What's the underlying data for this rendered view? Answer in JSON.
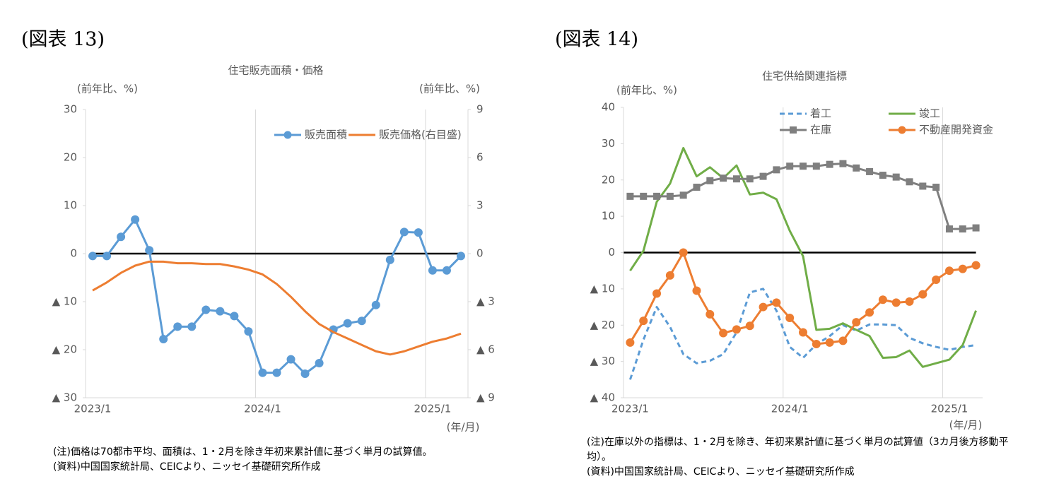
{
  "chart_data": [
    {
      "type": "line",
      "figure_label": "(図表 13)",
      "title": "住宅販売面積・価格",
      "y_label": "(前年比、%)",
      "y2_label": "(前年比、%)",
      "x_label": "(年/月)",
      "categories": [
        "2023/1",
        null,
        null,
        null,
        null,
        null,
        null,
        null,
        null,
        null,
        null,
        null,
        "2024/1",
        null,
        null,
        null,
        null,
        null,
        null,
        null,
        null,
        null,
        null,
        null,
        "2025/1",
        null,
        null
      ],
      "series": [
        {
          "name": "販売面積",
          "color": "#5b9bd5",
          "marker": "circle",
          "values": [
            -0.5,
            -0.5,
            3.5,
            7.1,
            0.7,
            -17.8,
            -15.2,
            -15.2,
            -11.7,
            -12,
            -13,
            -16.2,
            -24.8,
            -24.8,
            -22,
            -25,
            -22.8,
            -15.8,
            -14.5,
            -14,
            -10.7,
            -1.3,
            4.5,
            4.4,
            -3.5,
            -3.5,
            -0.5
          ]
        },
        {
          "name": "販売価格(右目盛)",
          "color": "#ed7d31",
          "axis": "y2",
          "values": [
            -2.3,
            -1.8,
            -1.2,
            -0.75,
            -0.5,
            -0.5,
            -0.6,
            -0.6,
            -0.65,
            -0.65,
            -0.8,
            -1.0,
            -1.3,
            -1.9,
            -2.7,
            -3.6,
            -4.4,
            -4.9,
            -5.3,
            -5.7,
            -6.1,
            -6.3,
            -6.1,
            -5.8,
            -5.5,
            -5.3,
            -5.0
          ]
        }
      ],
      "ylim": [
        -30,
        30
      ],
      "yticks": [
        30,
        20,
        10,
        0,
        {
          "value": -10,
          "label": "▲ 10"
        },
        {
          "value": -20,
          "label": "▲ 20"
        },
        {
          "value": -30,
          "label": "▲ 30"
        }
      ],
      "y2lim": [
        -9,
        9
      ],
      "y2ticks": [
        9,
        6,
        3,
        0,
        {
          "value": -3,
          "label": "▲ 3"
        },
        {
          "value": -6,
          "label": "▲ 6"
        },
        {
          "value": -9,
          "label": "▲ 9"
        }
      ],
      "legend": "upper right",
      "notes": [
        "(注)価格は70都市平均、面積は、1・2月を除き年初来累計値に基づく単月の試算値。",
        "(資料)中国国家統計局、CEICより、ニッセイ基礎研究所作成"
      ]
    },
    {
      "type": "line",
      "figure_label": "(図表 14)",
      "title": "住宅供給関連指標",
      "y_label": "(前年比、%)",
      "x_label": "(年/月)",
      "categories": [
        "2023/1",
        null,
        null,
        null,
        null,
        null,
        null,
        null,
        null,
        null,
        null,
        null,
        "2024/1",
        null,
        null,
        null,
        null,
        null,
        null,
        null,
        null,
        null,
        null,
        null,
        "2025/1",
        null,
        null
      ],
      "series": [
        {
          "name": "着工",
          "color": "#5b9bd5",
          "dash": true,
          "values": [
            -35,
            -24,
            -15,
            -20.5,
            -28,
            -30.5,
            -29.8,
            -28,
            -22,
            -11,
            -10,
            -16,
            -26,
            -29,
            -25.3,
            -23,
            -20,
            -21.5,
            -19.8,
            -19.8,
            -20,
            -23.5,
            -25,
            -26,
            -26.8,
            -26,
            -25.5
          ]
        },
        {
          "name": "竣工",
          "color": "#70ad47",
          "values": [
            -5,
            0.5,
            14,
            19,
            28.8,
            21,
            23.5,
            20.5,
            24,
            16,
            16.5,
            14.7,
            6,
            -1,
            -21.3,
            -21,
            -19.5,
            -21.3,
            -23,
            -29,
            -28.8,
            -27,
            -31.5,
            -30.5,
            -29.5,
            -25.5,
            -16
          ]
        },
        {
          "name": "在庫",
          "color": "#7f7f7f",
          "marker": "square",
          "values": [
            15.5,
            15.5,
            15.5,
            15.5,
            15.8,
            18,
            19.8,
            20.5,
            20.3,
            20.3,
            21,
            22.8,
            23.8,
            23.8,
            23.8,
            24.3,
            24.5,
            23.3,
            22.3,
            21.3,
            20.8,
            19.5,
            18.3,
            18,
            6.5,
            6.5,
            6.8
          ]
        },
        {
          "name": "不動産開発資金",
          "color": "#ed7d31",
          "marker": "circle",
          "values": [
            -24.8,
            -18.8,
            -11.3,
            -6.3,
            0,
            -10.5,
            -17,
            -22.2,
            -21.2,
            -20.2,
            -15,
            -13.8,
            -18,
            -22,
            -25.2,
            -24.8,
            -24.3,
            -19.2,
            -16.5,
            -13,
            -13.8,
            -13.5,
            -11.5,
            -7.5,
            -5,
            -4.5,
            -3.5
          ]
        }
      ],
      "ylim": [
        -40,
        40
      ],
      "yticks": [
        40,
        30,
        20,
        10,
        0,
        {
          "value": -10,
          "label": "▲ 10"
        },
        {
          "value": -20,
          "label": "▲ 20"
        },
        {
          "value": -30,
          "label": "▲ 30"
        },
        {
          "value": -40,
          "label": "▲ 40"
        }
      ],
      "legend": "upper right",
      "notes": [
        "(注)在庫以外の指標は、1・2月を除き、年初来累計値に基づく単月の試算値（3カ月後方移動平均）。",
        "(資料)中国国家統計局、CEICより、ニッセイ基礎研究所作成"
      ]
    }
  ]
}
